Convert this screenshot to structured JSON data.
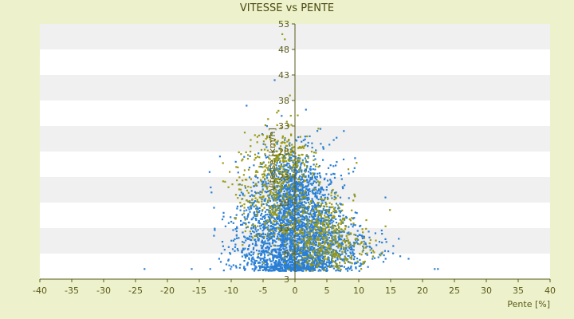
{
  "chart_data": {
    "type": "scatter",
    "title": "VITESSE vs PENTE",
    "xlabel": "Pente [%]",
    "ylabel": "Vitesse [km/h]",
    "xlim": [
      -40,
      40
    ],
    "ylim": [
      3,
      53
    ],
    "x_ticks": [
      "-40",
      "-35",
      "-30",
      "-25",
      "-20",
      "-15",
      "-10",
      "-5",
      "0",
      "5",
      "10",
      "15",
      "20",
      "25",
      "30",
      "35",
      "40"
    ],
    "y_ticks": [
      "3",
      "8",
      "13",
      "18",
      "23",
      "28",
      "33",
      "38",
      "43",
      "48",
      "53"
    ],
    "grid": "horizontal alternating bands",
    "colors": {
      "background": "#eef2cc",
      "plot_band_light": "#ffffff",
      "plot_band_dark": "#f0f0f0",
      "axis": "#5a5a18",
      "series_blue": "#2a7fd4",
      "series_olive": "#9a9a14"
    },
    "series": [
      {
        "color": "#2a7fd4",
        "points": [
          [
            -23.6,
            5
          ],
          [
            -16.2,
            5
          ],
          [
            -13.3,
            5
          ],
          [
            -10.1,
            5
          ],
          [
            -7.8,
            5
          ],
          [
            -6.2,
            5
          ],
          [
            -4.5,
            5
          ],
          [
            21.9,
            5
          ],
          [
            22.4,
            5
          ],
          [
            17.8,
            7
          ],
          [
            16.5,
            7.5
          ],
          [
            14.2,
            7
          ],
          [
            13.6,
            8
          ],
          [
            15.4,
            9.5
          ],
          [
            -13.4,
            24
          ],
          [
            -13.1,
            20
          ],
          [
            -12.7,
            17
          ],
          [
            -10.4,
            14
          ],
          [
            -11.2,
            16
          ],
          [
            -9.3,
            26
          ],
          [
            -8.4,
            20
          ],
          [
            -9.1,
            13
          ],
          [
            -7.6,
            37
          ],
          [
            -3.2,
            42
          ],
          [
            2.3,
            31
          ],
          [
            -4.4,
            33
          ],
          [
            -2.1,
            35
          ],
          [
            1.9,
            16
          ],
          [
            9.3,
            10
          ],
          [
            11.1,
            8
          ],
          [
            12.0,
            9
          ],
          [
            10.6,
            11
          ],
          [
            8.2,
            12
          ],
          [
            7.5,
            14
          ],
          [
            6.1,
            15
          ]
        ],
        "cloud": [
          {
            "cx": 0.4,
            "cy": 14,
            "sx": 3.6,
            "sy": 6.2,
            "n": 1500
          },
          {
            "cx": -0.7,
            "cy": 21,
            "sx": 1.9,
            "sy": 3.6,
            "n": 500
          },
          {
            "cx": 4.2,
            "cy": 9,
            "sx": 4.0,
            "sy": 2.6,
            "n": 500
          },
          {
            "cx": -3.2,
            "cy": 9,
            "sx": 3.4,
            "sy": 3.0,
            "n": 350
          },
          {
            "cx": 0.2,
            "cy": 6,
            "sx": 3.0,
            "sy": 1.1,
            "n": 320
          },
          {
            "cx": -6.5,
            "cy": 13,
            "sx": 2.6,
            "sy": 5.0,
            "n": 150
          }
        ]
      },
      {
        "color": "#9a9a14",
        "points": [
          [
            -2.0,
            51
          ],
          [
            -1.6,
            50
          ],
          [
            -0.8,
            39
          ],
          [
            -2.6,
            36
          ],
          [
            -1.9,
            31
          ],
          [
            -7.0,
            28
          ],
          [
            -4.9,
            30
          ],
          [
            -1.0,
            33
          ],
          [
            2.6,
            14
          ],
          [
            1.2,
            29
          ]
        ],
        "cloud": [
          {
            "cx": -3.6,
            "cy": 21,
            "sx": 2.9,
            "sy": 5.6,
            "n": 380
          },
          {
            "cx": 3.8,
            "cy": 13,
            "sx": 2.9,
            "sy": 4.4,
            "n": 300
          },
          {
            "cx": -1.2,
            "cy": 27,
            "sx": 2.1,
            "sy": 2.6,
            "n": 120
          },
          {
            "cx": 6.5,
            "cy": 9,
            "sx": 3.2,
            "sy": 2.3,
            "n": 160
          }
        ]
      }
    ]
  }
}
